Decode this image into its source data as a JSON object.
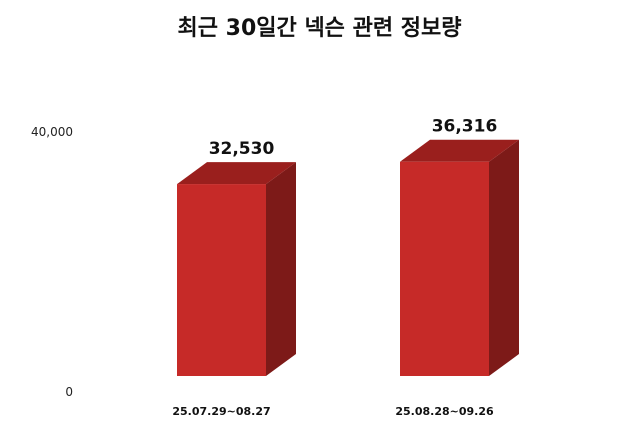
{
  "chart_data": {
    "type": "bar",
    "title": "최근 30일간 넥슨 관련 정보량",
    "categories": [
      "25.07.29~08.27",
      "25.08.28~09.26"
    ],
    "values": [
      32530,
      36316
    ],
    "value_labels": [
      "32,530",
      "36,316"
    ],
    "yticks": [
      {
        "value": 0,
        "label": "0"
      },
      {
        "value": 40000,
        "label": "40,000"
      }
    ],
    "ylim": [
      0,
      40000
    ],
    "grid": false,
    "bar_color": "#c62a28",
    "bar_top_color": "#9a1f1d",
    "bar_side_color": "#7d1a18"
  }
}
